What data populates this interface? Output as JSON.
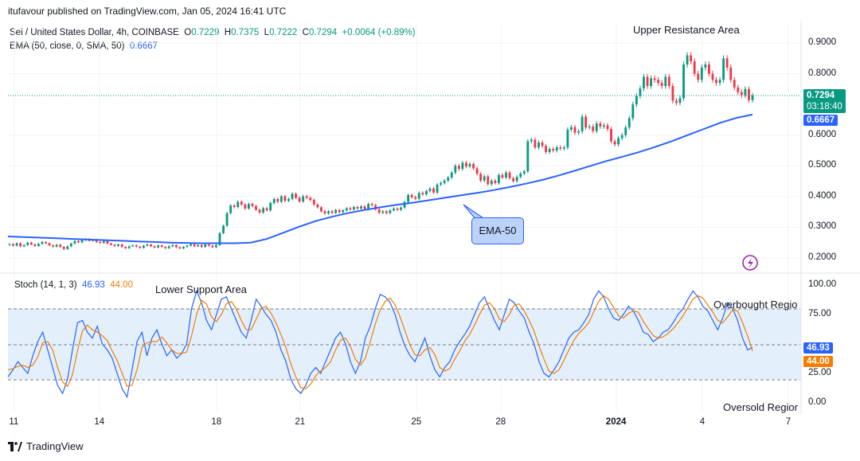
{
  "header": {
    "published": "itufavour published on TradingView.com, Jan 05, 2024 16:41 UTC"
  },
  "main": {
    "symbol": "Sei / United States Dollar, 4h, COINBASE",
    "ohlc": {
      "o_label": "O",
      "o": "0.7229",
      "h_label": "H",
      "h": "0.7375",
      "l_label": "L",
      "l": "0.7222",
      "c_label": "C",
      "c": "0.7294",
      "chg": "+0.0064 (+0.89%)"
    },
    "ema_legend": "EMA (50, close, 0, SMA, 50)",
    "ema_value": "0.6667",
    "price_tag": "0.7294",
    "countdown": "03:18:40",
    "ema_tag": "0.6667",
    "annotations": {
      "upper": "Upper Resistance Area",
      "ema": "EMA-50"
    }
  },
  "stoch": {
    "legend": "Stoch (14, 1, 3)",
    "k_value": "46.93",
    "d_value": "44.00",
    "annotations": {
      "lower": "Lower Support Area",
      "overbought": "Overbought Regio",
      "oversold": "Oversold Regior"
    }
  },
  "footer": {
    "brand": "TradingView"
  },
  "colors": {
    "up": "#089981",
    "down": "#f23645",
    "ema": "#2962ff",
    "k": "#2962ff",
    "d": "#f57c00",
    "band": "#e3f0fc"
  },
  "chart_data": [
    {
      "type": "candlestick",
      "title": "Sei / United States Dollar, 4h, COINBASE",
      "ylim": [
        0.15,
        0.95
      ],
      "y_ticks": [
        "0.9000",
        "0.8000",
        "0.6000",
        "0.5000",
        "0.4000",
        "0.3000",
        "0.2000"
      ],
      "x_ticks": [
        "11",
        "14",
        "18",
        "21",
        "25",
        "28",
        "2024",
        "4",
        "7"
      ],
      "series": [
        {
          "name": "Sei / United States Dollar",
          "close": [
            0.245,
            0.24,
            0.248,
            0.238,
            0.242,
            0.25,
            0.244,
            0.239,
            0.246,
            0.252,
            0.248,
            0.241,
            0.237,
            0.243,
            0.236,
            0.229,
            0.238,
            0.247,
            0.255,
            0.251,
            0.258,
            0.262,
            0.256,
            0.259,
            0.252,
            0.249,
            0.255,
            0.247,
            0.243,
            0.239,
            0.244,
            0.236,
            0.232,
            0.238,
            0.241,
            0.237,
            0.233,
            0.24,
            0.244,
            0.238,
            0.234,
            0.241,
            0.236,
            0.232,
            0.238,
            0.242,
            0.235,
            0.231,
            0.236,
            0.24,
            0.245,
            0.238,
            0.242,
            0.236,
            0.244,
            0.24,
            0.235,
            0.242,
            0.281,
            0.305,
            0.346,
            0.371,
            0.366,
            0.383,
            0.374,
            0.361,
            0.376,
            0.369,
            0.357,
            0.348,
            0.362,
            0.355,
            0.379,
            0.392,
            0.383,
            0.401,
            0.386,
            0.392,
            0.409,
            0.396,
            0.384,
            0.401,
            0.396,
            0.389,
            0.374,
            0.365,
            0.352,
            0.345,
            0.352,
            0.347,
            0.356,
            0.349,
            0.355,
            0.362,
            0.358,
            0.366,
            0.361,
            0.368,
            0.359,
            0.376,
            0.372,
            0.358,
            0.347,
            0.352,
            0.346,
            0.355,
            0.361,
            0.357,
            0.364,
            0.382,
            0.405,
            0.398,
            0.393,
            0.412,
            0.407,
            0.418,
            0.426,
            0.413,
            0.439,
            0.444,
            0.452,
            0.462,
            0.478,
            0.5,
            0.49,
            0.51,
            0.498,
            0.506,
            0.492,
            0.474,
            0.452,
            0.466,
            0.44,
            0.452,
            0.444,
            0.47,
            0.462,
            0.478,
            0.46,
            0.45,
            0.464,
            0.475,
            0.482,
            0.58,
            0.585,
            0.56,
            0.576,
            0.565,
            0.545,
            0.555,
            0.55,
            0.56,
            0.556,
            0.56,
            0.618,
            0.626,
            0.608,
            0.612,
            0.66,
            0.625,
            0.628,
            0.613,
            0.638,
            0.628,
            0.632,
            0.62,
            0.58,
            0.57,
            0.59,
            0.6,
            0.625,
            0.655,
            0.7,
            0.728,
            0.752,
            0.79,
            0.76,
            0.785,
            0.78,
            0.77,
            0.76,
            0.79,
            0.76,
            0.712,
            0.705,
            0.72,
            0.83,
            0.86,
            0.84,
            0.8,
            0.78,
            0.82,
            0.83,
            0.8,
            0.78,
            0.77,
            0.78,
            0.85,
            0.82,
            0.78,
            0.755,
            0.74,
            0.73,
            0.75,
            0.714,
            0.729
          ]
        }
      ]
    },
    {
      "type": "line",
      "title": "EMA (50, close, 0, SMA, 50)",
      "series": [
        {
          "name": "EMA (50, close, 0, SMA, 50)",
          "values": [
            0.27,
            0.268,
            0.266,
            0.264,
            0.262,
            0.26,
            0.258,
            0.256,
            0.254,
            0.252,
            0.25,
            0.249,
            0.248,
            0.248,
            0.248,
            0.25,
            0.262,
            0.282,
            0.302,
            0.32,
            0.334,
            0.346,
            0.356,
            0.365,
            0.373,
            0.38,
            0.388,
            0.396,
            0.404,
            0.412,
            0.421,
            0.431,
            0.442,
            0.454,
            0.468,
            0.484,
            0.5,
            0.516,
            0.53,
            0.545,
            0.562,
            0.58,
            0.6,
            0.62,
            0.64,
            0.656,
            0.667
          ]
        }
      ]
    },
    {
      "type": "line",
      "title": "Stoch (14, 1, 3)",
      "ylim": [
        0,
        100
      ],
      "y_ticks": [
        "100.00",
        "75.00",
        "25.00",
        "0.00"
      ],
      "series": [
        {
          "name": "Stoch %K",
          "values": [
            22,
            28,
            35,
            30,
            25,
            40,
            52,
            60,
            45,
            30,
            15,
            8,
            20,
            45,
            68,
            70,
            60,
            55,
            65,
            50,
            45,
            38,
            25,
            12,
            5,
            28,
            52,
            60,
            40,
            55,
            62,
            50,
            40,
            45,
            38,
            42,
            50,
            80,
            95,
            85,
            70,
            62,
            75,
            88,
            90,
            80,
            70,
            60,
            55,
            70,
            88,
            82,
            75,
            70,
            60,
            45,
            35,
            20,
            12,
            8,
            15,
            25,
            30,
            25,
            35,
            45,
            55,
            60,
            50,
            35,
            25,
            35,
            55,
            65,
            80,
            92,
            90,
            85,
            75,
            60,
            48,
            40,
            35,
            45,
            55,
            40,
            28,
            22,
            30,
            35,
            45,
            52,
            58,
            65,
            75,
            85,
            90,
            80,
            70,
            62,
            75,
            88,
            85,
            78,
            72,
            60,
            50,
            35,
            25,
            22,
            28,
            35,
            45,
            55,
            60,
            62,
            68,
            75,
            88,
            95,
            90,
            80,
            72,
            70,
            75,
            82,
            78,
            70,
            60,
            58,
            52,
            55,
            60,
            62,
            68,
            75,
            80,
            88,
            95,
            90,
            82,
            78,
            70,
            62,
            72,
            85,
            80,
            70,
            55,
            45,
            47
          ]
        },
        {
          "name": "Stoch %D",
          "values": [
            28,
            29,
            31,
            32,
            30,
            32,
            39,
            51,
            52,
            45,
            30,
            18,
            14,
            24,
            44,
            61,
            66,
            62,
            60,
            57,
            53,
            44,
            36,
            25,
            14,
            15,
            28,
            47,
            51,
            52,
            52,
            56,
            51,
            45,
            42,
            42,
            43,
            57,
            75,
            87,
            84,
            73,
            69,
            75,
            84,
            86,
            80,
            70,
            62,
            62,
            71,
            80,
            82,
            76,
            68,
            58,
            47,
            33,
            22,
            13,
            12,
            16,
            23,
            27,
            30,
            35,
            45,
            53,
            55,
            48,
            37,
            32,
            38,
            52,
            67,
            79,
            86,
            89,
            83,
            73,
            61,
            49,
            41,
            40,
            45,
            47,
            41,
            30,
            27,
            29,
            37,
            44,
            52,
            58,
            66,
            75,
            83,
            85,
            80,
            71,
            69,
            75,
            83,
            84,
            78,
            70,
            61,
            48,
            37,
            27,
            25,
            28,
            36,
            45,
            53,
            59,
            63,
            68,
            77,
            86,
            91,
            88,
            81,
            74,
            72,
            76,
            78,
            77,
            69,
            63,
            57,
            55,
            56,
            59,
            63,
            68,
            74,
            81,
            88,
            91,
            89,
            83,
            77,
            70,
            68,
            73,
            79,
            78,
            68,
            57,
            44
          ]
        }
      ]
    }
  ]
}
